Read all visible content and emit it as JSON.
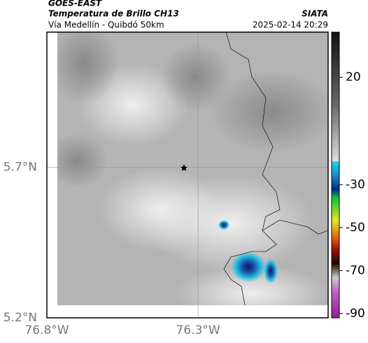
{
  "header": {
    "title": "GOES-EAST",
    "subtitle": "Temperatura de Brillo CH13",
    "region": "Vía Medellín - Quibdó 50km",
    "source": "SIATA",
    "datetime": "2025-02-14 20:29"
  },
  "map": {
    "xlim": [
      -76.8,
      -75.87
    ],
    "ylim": [
      5.2,
      6.15
    ],
    "xticks": [
      {
        "value": -76.8,
        "label": "76.8°W"
      },
      {
        "value": -76.3,
        "label": "76.3°W"
      }
    ],
    "yticks": [
      {
        "value": 5.2,
        "label": "5.2°N"
      },
      {
        "value": 5.7,
        "label": "5.7°N"
      }
    ],
    "grid": true
  },
  "colorbar": {
    "lim": [
      -92,
      41
    ],
    "ticks": [
      20,
      -30,
      -50,
      -70,
      -90
    ]
  }
}
